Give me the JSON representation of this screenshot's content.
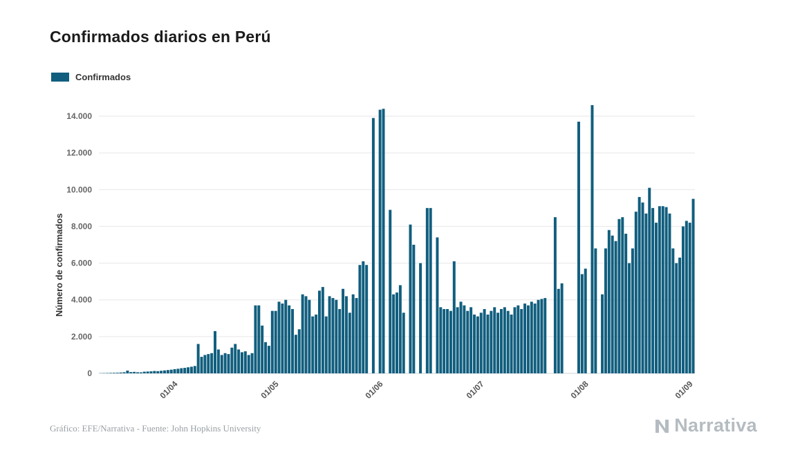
{
  "header": {
    "title": "Confirmados diarios en Perú"
  },
  "legend": {
    "items": [
      {
        "label": "Confirmados",
        "color": "#115e7e"
      }
    ]
  },
  "footer": {
    "credit": "Gráfico: EFE/Narrativa - Fuente: John Hopkins University",
    "brand": "Narrativa"
  },
  "chart_data": {
    "type": "bar",
    "title": "Confirmados diarios en Perú",
    "xlabel": "",
    "ylabel": "Número de confirmados",
    "legend_position": "top-left",
    "grid": "horizontal",
    "bar_color": "#115e7e",
    "ylim": [
      0,
      15000
    ],
    "y_ticks": {
      "values": [
        0,
        2000,
        4000,
        6000,
        8000,
        10000,
        12000,
        14000
      ],
      "labels": [
        "0",
        "2.000",
        "4.000",
        "6.000",
        "8.000",
        "10.000",
        "12.000",
        "14.000"
      ]
    },
    "x_ticks": [
      {
        "label": "01/04",
        "index": 23
      },
      {
        "label": "01/05",
        "index": 53
      },
      {
        "label": "01/06",
        "index": 84
      },
      {
        "label": "01/07",
        "index": 114
      },
      {
        "label": "01/08",
        "index": 145
      },
      {
        "label": "01/09",
        "index": 176
      }
    ],
    "series": [
      {
        "name": "Confirmados",
        "color": "#115e7e",
        "values": [
          10,
          15,
          20,
          25,
          30,
          35,
          45,
          60,
          150,
          70,
          80,
          60,
          55,
          90,
          100,
          110,
          130,
          120,
          140,
          160,
          180,
          200,
          230,
          250,
          280,
          300,
          330,
          360,
          400,
          1600,
          900,
          1000,
          1050,
          1100,
          2300,
          1300,
          1000,
          1100,
          1050,
          1400,
          1600,
          1300,
          1150,
          1200,
          1000,
          1100,
          3700,
          3700,
          2600,
          1700,
          1500,
          3400,
          3400,
          3900,
          3800,
          4000,
          3700,
          3500,
          2100,
          2400,
          4300,
          4200,
          4000,
          3100,
          3200,
          4500,
          4700,
          3100,
          4200,
          4100,
          4000,
          3500,
          4600,
          4200,
          3300,
          4300,
          4100,
          5900,
          6100,
          5900,
          0,
          13900,
          0,
          14350,
          14400,
          0,
          8900,
          4300,
          4400,
          4800,
          3300,
          0,
          8100,
          7000,
          0,
          6000,
          0,
          9000,
          9000,
          0,
          7400,
          3600,
          3500,
          3500,
          3400,
          6100,
          3600,
          3900,
          3700,
          3400,
          3600,
          3200,
          3100,
          3300,
          3500,
          3200,
          3400,
          3600,
          3300,
          3500,
          3600,
          3400,
          3200,
          3600,
          3700,
          3500,
          3800,
          3700,
          3900,
          3800,
          4000,
          4050,
          4100,
          0,
          0,
          8500,
          4600,
          4900,
          0,
          0,
          0,
          0,
          13700,
          5400,
          5700,
          0,
          14600,
          6800,
          0,
          4300,
          6800,
          7800,
          7500,
          7200,
          8400,
          8500,
          7600,
          6000,
          6800,
          8800,
          9600,
          9300,
          8700,
          10100,
          9000,
          8200,
          9100,
          9100,
          9050,
          8700,
          6800,
          6000,
          6300,
          8000,
          8300,
          8200,
          9500
        ]
      }
    ]
  }
}
